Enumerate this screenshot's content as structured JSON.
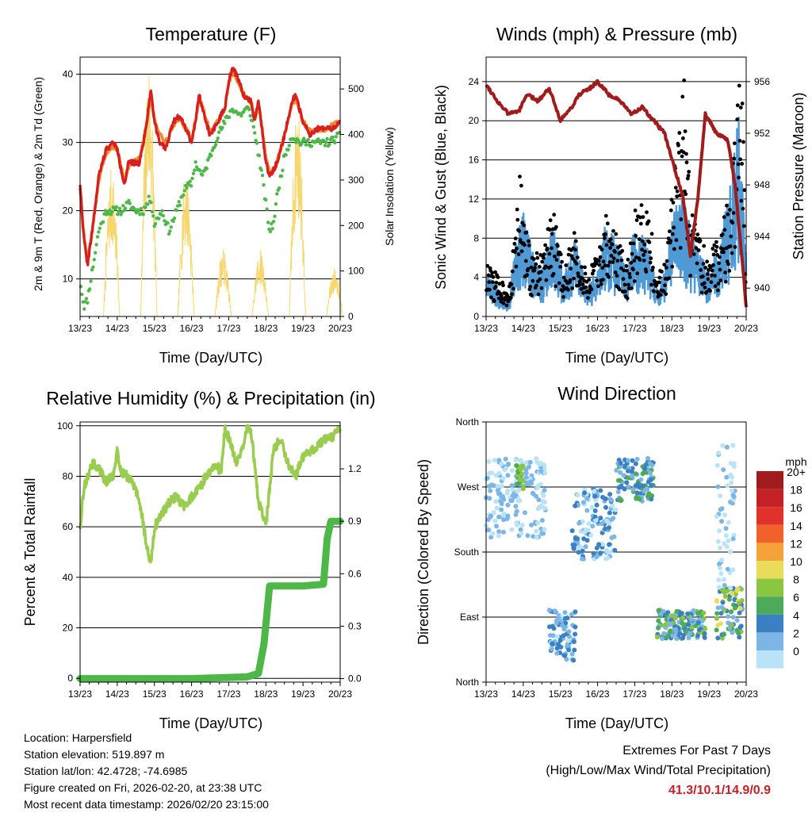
{
  "time_ticks": [
    "13/23",
    "14/23",
    "15/23",
    "16/23",
    "17/23",
    "18/23",
    "19/23",
    "20/23"
  ],
  "info": {
    "location": "Location: Harpersfield",
    "elevation": "Station elevation: 519.897 m",
    "latlon": "Station lat/lon: 42.4728; -74.6985",
    "created": "Figure created on Fri, 2026-02-20, at 23:38 UTC",
    "recent": "Most recent data timestamp: 2026/02/20 23:15:00"
  },
  "extremes": {
    "line1": "Extremes For Past 7 Days",
    "line2": "(High/Low/Max Wind/Total Precipitation)",
    "values": "41.3/10.1/14.9/0.9"
  },
  "colors": {
    "temp_red": "#d42020",
    "temp_orange": "#f08a30",
    "dew_green": "#4db848",
    "solar_yellow": "#f5d76e",
    "gust_black": "#000000",
    "wind_blue": "#4f9ad4",
    "pressure_maroon": "#a01b1b",
    "rh_lightgreen": "#99cc4f",
    "precip_green": "#4db848"
  },
  "chart_data": [
    {
      "id": "temperature",
      "type": "line",
      "title": "Temperature (F)",
      "xlabel": "Time (Day/UTC)",
      "ylabel": "2m & 9m T (Red, Orange) & 2m Td (Green)",
      "y2label": "Solar Insolation (Yellow)",
      "xlim": [
        0,
        7
      ],
      "ylim": [
        4.5,
        42.5
      ],
      "yticks": [
        10,
        20,
        30,
        40
      ],
      "y2lim": [
        0,
        570
      ],
      "y2ticks": [
        0,
        100,
        200,
        300,
        400,
        500
      ],
      "series": [
        {
          "name": "2m T",
          "color": "#d42020",
          "x": [
            0,
            0.1,
            0.2,
            0.35,
            0.5,
            0.7,
            0.9,
            1.0,
            1.1,
            1.2,
            1.3,
            1.4,
            1.6,
            1.8,
            1.9,
            2.0,
            2.15,
            2.3,
            2.5,
            2.7,
            2.85,
            3.0,
            3.1,
            3.2,
            3.3,
            3.5,
            3.7,
            3.9,
            4.0,
            4.1,
            4.2,
            4.4,
            4.6,
            4.7,
            4.8,
            4.9,
            5.0,
            5.1,
            5.2,
            5.3,
            5.5,
            5.7,
            5.8,
            6.0,
            6.2,
            6.4,
            6.6,
            6.8,
            7.0
          ],
          "y": [
            24,
            16,
            12,
            18,
            25,
            29,
            30,
            29,
            26,
            24,
            27,
            27,
            27,
            33,
            38,
            33,
            30,
            29,
            33,
            34,
            32,
            30,
            33,
            37,
            35,
            31,
            33,
            35,
            39,
            41,
            40,
            37,
            36,
            33,
            36,
            32,
            27,
            25,
            26,
            27,
            31,
            36,
            37,
            33,
            31,
            32,
            32,
            32,
            33
          ]
        },
        {
          "name": "9m T",
          "color": "#f08a30",
          "x": [
            0,
            0.1,
            0.2,
            0.35,
            0.5,
            0.7,
            0.9,
            1.0,
            1.1,
            1.2,
            1.3,
            1.4,
            1.6,
            1.8,
            1.9,
            2.0,
            2.15,
            2.3,
            2.5,
            2.7,
            2.85,
            3.0,
            3.1,
            3.2,
            3.3,
            3.5,
            3.7,
            3.9,
            4.0,
            4.1,
            4.2,
            4.4,
            4.6,
            4.7,
            4.8,
            4.9,
            5.0,
            5.1,
            5.2,
            5.3,
            5.5,
            5.7,
            5.8,
            6.0,
            6.2,
            6.4,
            6.6,
            6.8,
            7.0
          ],
          "y": [
            23.5,
            16.5,
            12.5,
            18,
            24.5,
            28.5,
            29.5,
            29,
            26.5,
            24.5,
            26.5,
            27,
            27.5,
            33,
            37,
            33.5,
            31,
            30,
            32.5,
            33.5,
            32,
            30.5,
            33,
            36.5,
            35,
            31.5,
            33,
            35,
            38.5,
            40.5,
            39.5,
            37,
            36,
            33.5,
            35.5,
            32,
            27.5,
            25.5,
            26,
            27,
            31,
            35.5,
            36.5,
            33,
            31.5,
            32,
            32,
            32.5,
            33
          ]
        },
        {
          "name": "2m Td",
          "color": "#4db848",
          "x": [
            0,
            0.1,
            0.2,
            0.35,
            0.5,
            0.7,
            0.9,
            1.1,
            1.3,
            1.5,
            1.7,
            1.9,
            2.0,
            2.2,
            2.4,
            2.6,
            2.8,
            3.0,
            3.1,
            3.3,
            3.5,
            3.7,
            3.9,
            4.1,
            4.3,
            4.5,
            4.6,
            4.75,
            4.9,
            5.0,
            5.1,
            5.2,
            5.3,
            5.5,
            5.7,
            5.9,
            6.1,
            6.3,
            6.5,
            6.7,
            7.0
          ],
          "y": [
            10,
            6,
            7,
            12,
            17,
            20,
            20,
            20,
            21,
            20,
            20,
            22,
            18,
            20,
            17,
            20,
            23,
            24,
            27,
            25,
            28,
            31,
            33,
            35,
            34,
            35,
            34,
            30,
            25,
            21,
            17,
            18,
            22,
            28,
            31,
            30,
            30,
            30,
            30,
            30,
            31
          ]
        }
      ],
      "solar_peaks": [
        {
          "x": 0.85,
          "value": 330
        },
        {
          "x": 1.85,
          "value": 570
        },
        {
          "x": 2.85,
          "value": 330
        },
        {
          "x": 3.85,
          "value": 150
        },
        {
          "x": 4.85,
          "value": 150
        },
        {
          "x": 5.85,
          "value": 470
        },
        {
          "x": 6.85,
          "value": 110
        }
      ]
    },
    {
      "id": "winds",
      "type": "scatter",
      "title": "Winds (mph) & Pressure (mb)",
      "xlabel": "Time (Day/UTC)",
      "ylabel": "Sonic Wind & Gust (Blue, Black)",
      "y2label": "Station Pressure (Maroon)",
      "xlim": [
        0,
        7
      ],
      "ylim": [
        0,
        26.5
      ],
      "yticks": [
        0,
        4,
        8,
        12,
        16,
        20,
        24
      ],
      "y2lim": [
        937.8,
        957.9
      ],
      "y2ticks": [
        940,
        944,
        948,
        952,
        956
      ],
      "series": [
        {
          "name": "Sonic Wind",
          "color": "#4f9ad4",
          "x": [
            0,
            0.3,
            0.6,
            0.8,
            1.0,
            1.2,
            1.5,
            1.8,
            2.1,
            2.4,
            2.7,
            3.0,
            3.2,
            3.5,
            3.8,
            4.0,
            4.3,
            4.6,
            4.8,
            5.0,
            5.2,
            5.5,
            5.8,
            6.0,
            6.3,
            6.6,
            6.8,
            7.0
          ],
          "y": [
            3,
            2,
            1,
            5,
            7,
            5,
            3,
            6,
            3,
            5,
            2,
            3,
            6,
            5,
            3,
            6,
            5,
            2,
            3,
            6,
            9,
            6,
            4,
            3,
            5,
            9,
            13,
            4
          ]
        },
        {
          "name": "Gust",
          "color": "#000000",
          "x": [
            0,
            0.3,
            0.6,
            0.8,
            0.9,
            1.0,
            1.2,
            1.5,
            1.8,
            2.1,
            2.4,
            2.7,
            3.0,
            3.2,
            3.5,
            3.8,
            4.0,
            4.3,
            4.6,
            4.8,
            5.0,
            5.2,
            5.35,
            5.5,
            5.8,
            6.0,
            6.3,
            6.6,
            6.8,
            6.9,
            7.0
          ],
          "y": [
            5,
            4,
            3,
            8,
            16,
            10,
            6,
            6,
            10,
            5,
            8,
            4,
            6,
            10,
            8,
            5,
            10,
            12,
            4,
            5,
            12,
            18,
            24,
            10,
            7,
            6,
            8,
            12,
            22,
            24,
            6
          ]
        },
        {
          "name": "Station Pressure",
          "color": "#a01b1b",
          "x": [
            0,
            0.3,
            0.6,
            0.9,
            1.1,
            1.4,
            1.7,
            2.0,
            2.3,
            2.5,
            2.8,
            3.0,
            3.3,
            3.6,
            3.9,
            4.2,
            4.5,
            4.8,
            5.0,
            5.3,
            5.5,
            5.7,
            5.9,
            6.2,
            6.5,
            6.7,
            6.9,
            7.0
          ],
          "y": [
            955.8,
            954.5,
            953.5,
            953.8,
            955,
            954.5,
            955.5,
            953,
            954,
            955,
            955.5,
            956,
            955,
            954.5,
            953.5,
            954,
            953,
            952,
            950,
            947,
            942.5,
            947,
            953.5,
            952,
            951.5,
            948,
            942,
            938.5
          ]
        }
      ]
    },
    {
      "id": "rh_precip",
      "type": "line",
      "title": "Relative Humidity (%) & Precipitation (in)",
      "xlabel": "Time (Day/UTC)",
      "ylabel": "Percent & Total Rainfall",
      "xlim": [
        0,
        7
      ],
      "ylim": [
        -1.5,
        101.5
      ],
      "yticks": [
        0,
        20,
        40,
        60,
        80,
        100
      ],
      "y2lim": [
        -0.02,
        1.468
      ],
      "y2ticks": [
        "0.0",
        "0.3",
        "0.6",
        "0.9",
        "1.2"
      ],
      "series": [
        {
          "name": "Relative Humidity",
          "color": "#99cc4f",
          "x": [
            0,
            0.1,
            0.2,
            0.35,
            0.5,
            0.7,
            0.9,
            1.0,
            1.1,
            1.25,
            1.4,
            1.6,
            1.8,
            1.9,
            2.0,
            2.2,
            2.4,
            2.6,
            2.8,
            3.0,
            3.2,
            3.4,
            3.6,
            3.8,
            3.9,
            4.0,
            4.2,
            4.4,
            4.5,
            4.6,
            4.8,
            5.0,
            5.2,
            5.4,
            5.6,
            5.8,
            6.0,
            6.2,
            6.4,
            6.6,
            6.8,
            7.0
          ],
          "y": [
            60,
            75,
            80,
            85,
            83,
            78,
            80,
            90,
            82,
            80,
            78,
            70,
            52,
            45,
            60,
            65,
            70,
            72,
            68,
            72,
            75,
            80,
            85,
            82,
            99,
            95,
            85,
            93,
            99,
            98,
            70,
            60,
            90,
            95,
            85,
            80,
            88,
            90,
            92,
            95,
            96,
            98
          ]
        },
        {
          "name": "Total Precipitation",
          "color": "#4db848",
          "x": [
            0,
            3.0,
            4.5,
            4.8,
            4.95,
            5.1,
            5.3,
            6.0,
            6.55,
            6.65,
            6.75,
            7.0
          ],
          "y": [
            0,
            0,
            0.01,
            0.03,
            0.2,
            0.53,
            0.53,
            0.53,
            0.54,
            0.8,
            0.9,
            0.9
          ]
        }
      ]
    },
    {
      "id": "wind_direction",
      "type": "scatter",
      "title": "Wind Direction",
      "xlabel": "Time (Day/UTC)",
      "ylabel": "Direction (Colored By Speed)",
      "xlim": [
        0,
        7
      ],
      "ylim": [
        0,
        360
      ],
      "yticks": [
        "North",
        "East",
        "South",
        "West",
        "North"
      ],
      "legend_title": "mph",
      "legend_labels": [
        "20+",
        "18",
        "16",
        "14",
        "12",
        "10",
        "8",
        "6",
        "4",
        "2",
        "0"
      ],
      "legend_colors": [
        "#a01b1b",
        "#c42127",
        "#e0322a",
        "#f0622a",
        "#f5a23b",
        "#e8dc5a",
        "#8ac63f",
        "#4caa5a",
        "#3a80c2",
        "#7bb6e6",
        "#b9e3f7"
      ],
      "clusters": [
        {
          "x": [
            0.0,
            1.6
          ],
          "dir": [
            200,
            310
          ],
          "speed": [
            0,
            4
          ]
        },
        {
          "x": [
            0.8,
            1.0
          ],
          "dir": [
            265,
            300
          ],
          "speed": [
            6,
            10
          ]
        },
        {
          "x": [
            1.7,
            2.4
          ],
          "dir": [
            30,
            100
          ],
          "speed": [
            1,
            6
          ]
        },
        {
          "x": [
            2.3,
            3.5
          ],
          "dir": [
            170,
            270
          ],
          "speed": [
            1,
            6
          ]
        },
        {
          "x": [
            3.5,
            4.5
          ],
          "dir": [
            250,
            310
          ],
          "speed": [
            2,
            8
          ]
        },
        {
          "x": [
            4.6,
            5.9
          ],
          "dir": [
            60,
            100
          ],
          "speed": [
            2,
            10
          ]
        },
        {
          "x": [
            6.2,
            6.9
          ],
          "dir": [
            60,
            130
          ],
          "speed": [
            2,
            12
          ]
        },
        {
          "x": [
            6.2,
            6.7
          ],
          "dir": [
            130,
            330
          ],
          "speed": [
            0,
            3
          ]
        }
      ]
    }
  ]
}
